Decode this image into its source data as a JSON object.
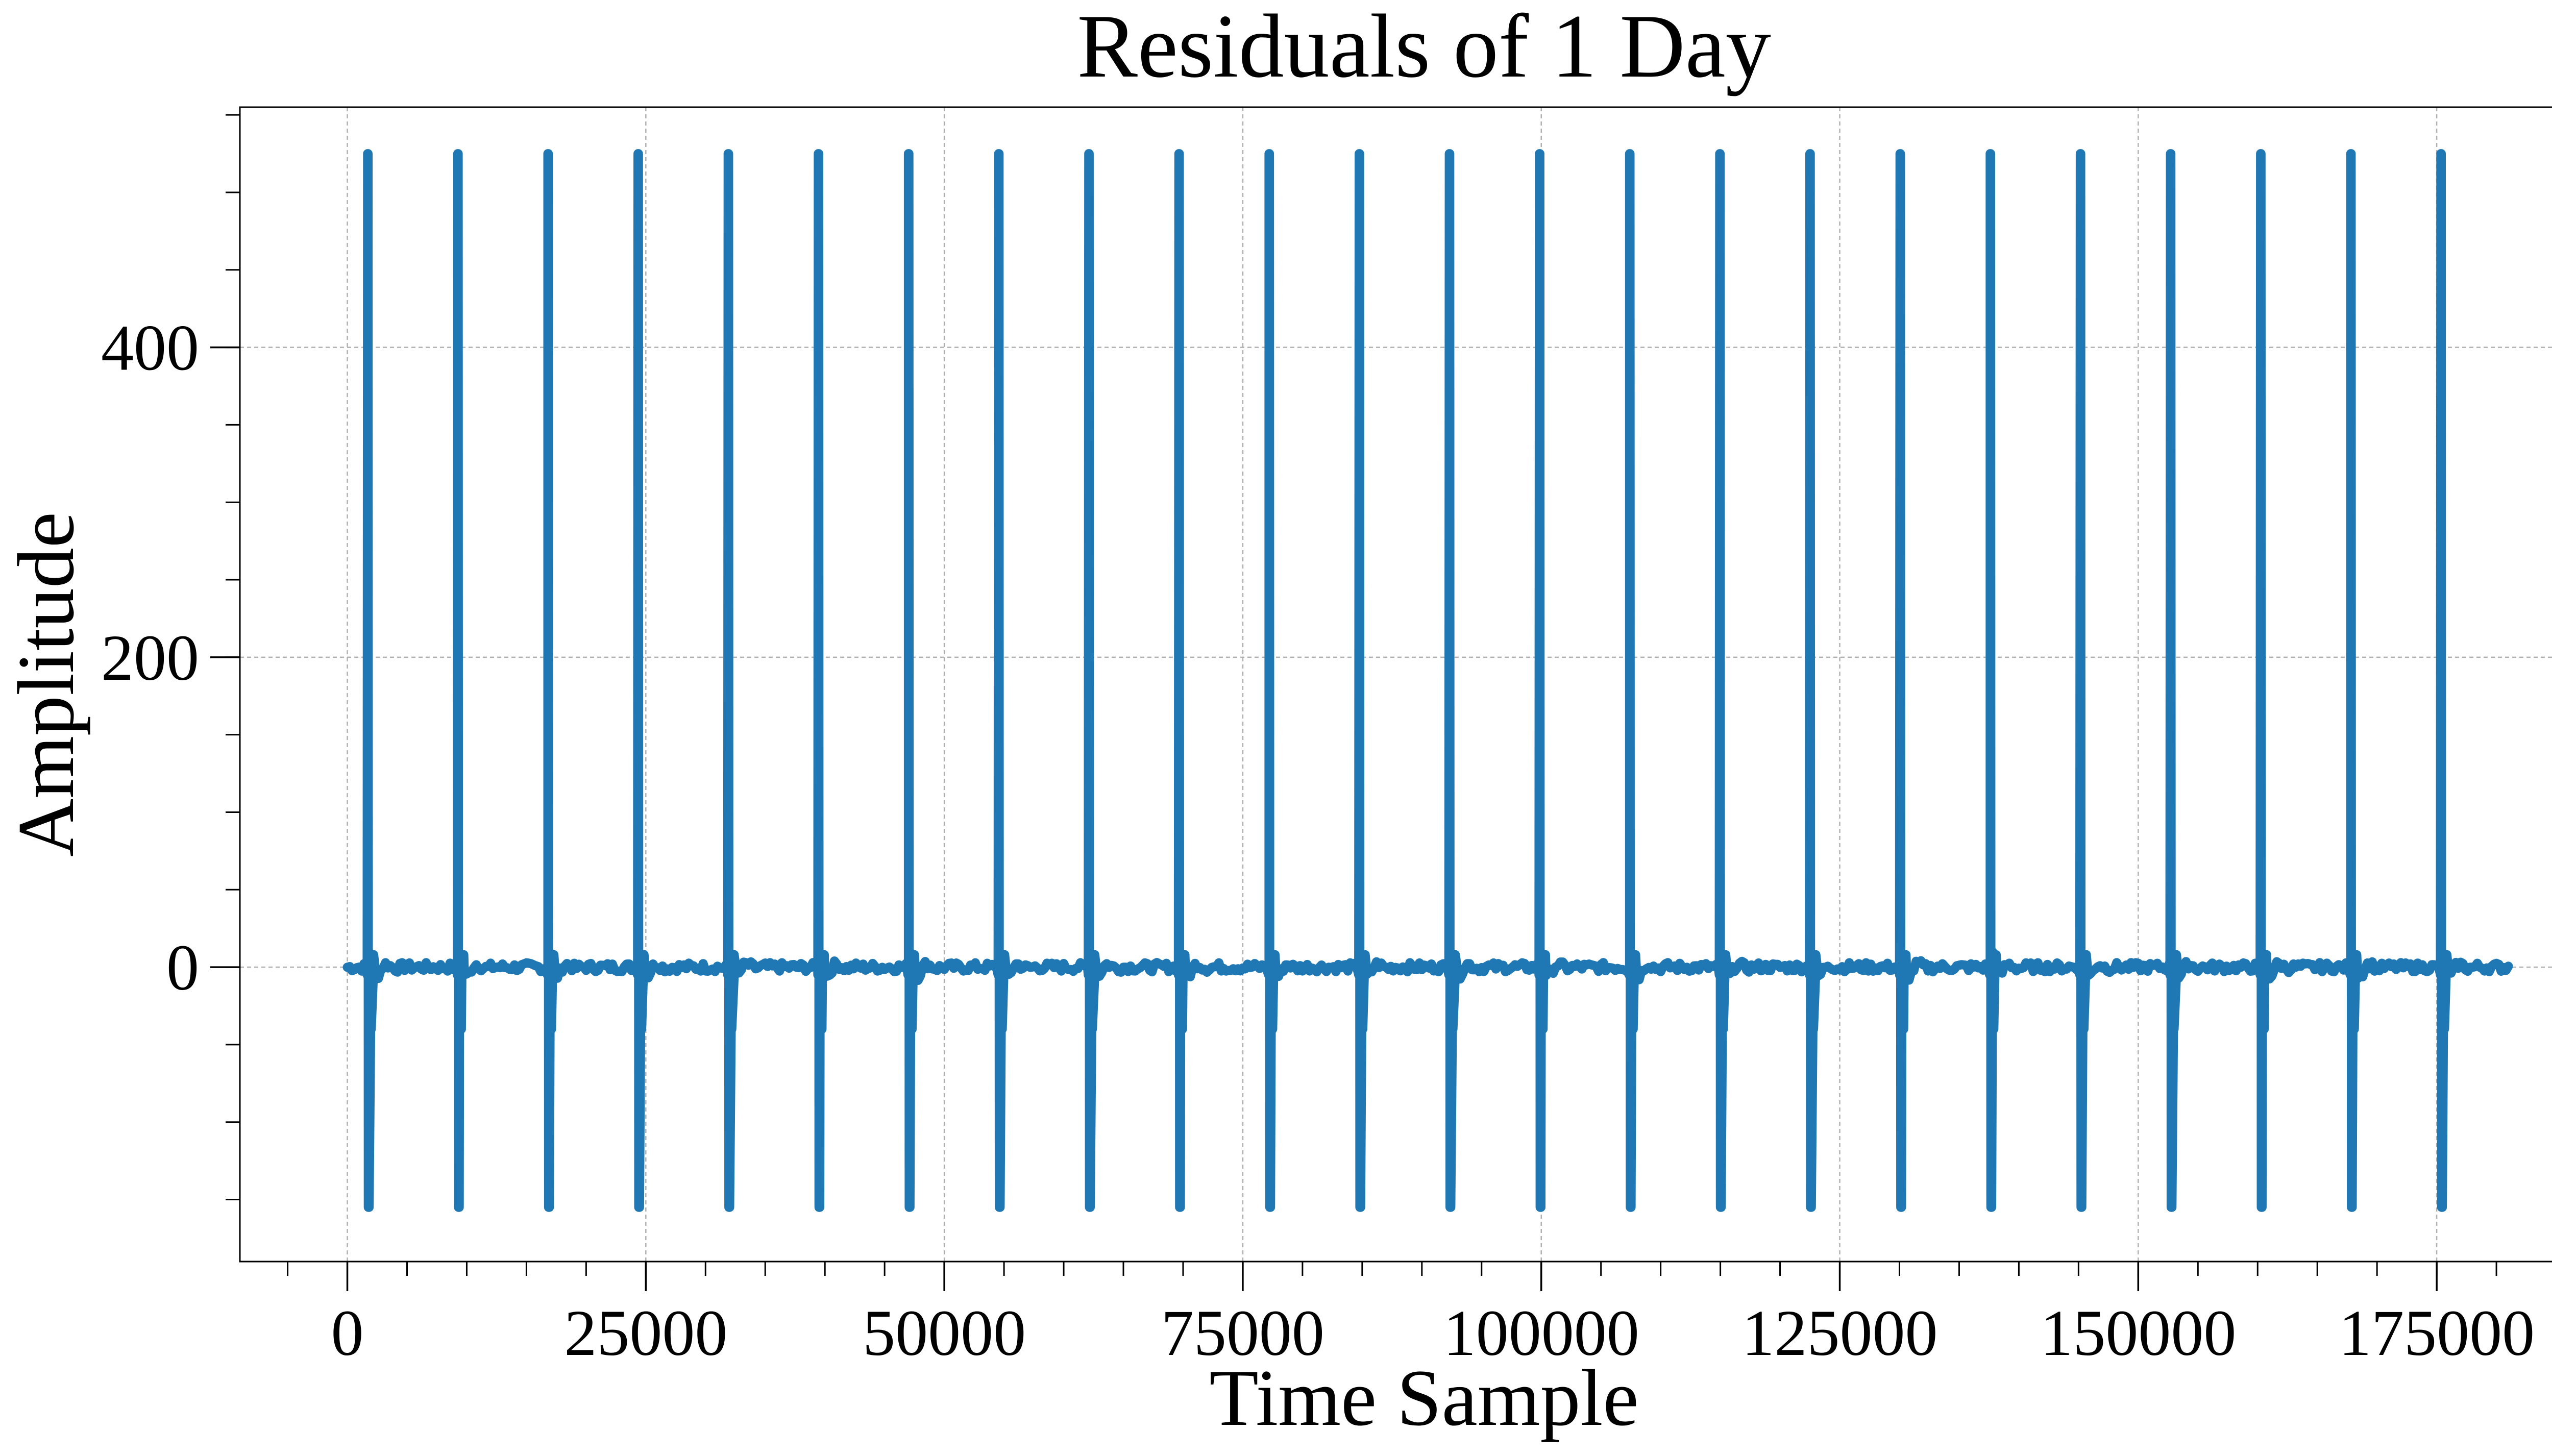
{
  "chart_data": {
    "type": "line",
    "title": "Residuals of 1 Day",
    "xlabel": "Time Sample",
    "ylabel": "Amplitude",
    "xlim": [
      -9000,
      190000
    ],
    "ylim": [
      -190,
      555
    ],
    "x_ticks": [
      0,
      25000,
      50000,
      75000,
      100000,
      125000,
      150000,
      175000
    ],
    "x_tick_labels": [
      "0",
      "25000",
      "50000",
      "75000",
      "100000",
      "125000",
      "150000",
      "175000"
    ],
    "x_minor_step": 5000,
    "y_ticks": [
      0,
      200,
      400
    ],
    "y_tick_labels": [
      "0",
      "200",
      "400"
    ],
    "y_minor_step": 50,
    "grid": true,
    "series": [
      {
        "color": "#1f77b4",
        "baseline_range": [
          0,
          181000
        ],
        "spike_positions": [
          1700,
          9250,
          16800,
          24350,
          31900,
          39450,
          47000,
          54550,
          62100,
          69650,
          77200,
          84750,
          92300,
          99850,
          107400,
          114950,
          122500,
          130050,
          137600,
          145150,
          152700,
          160250,
          167800,
          175350
        ],
        "spike_max": 525,
        "spike_min": -155,
        "ringing_peak": 18,
        "noise_amplitude": 3
      }
    ]
  }
}
